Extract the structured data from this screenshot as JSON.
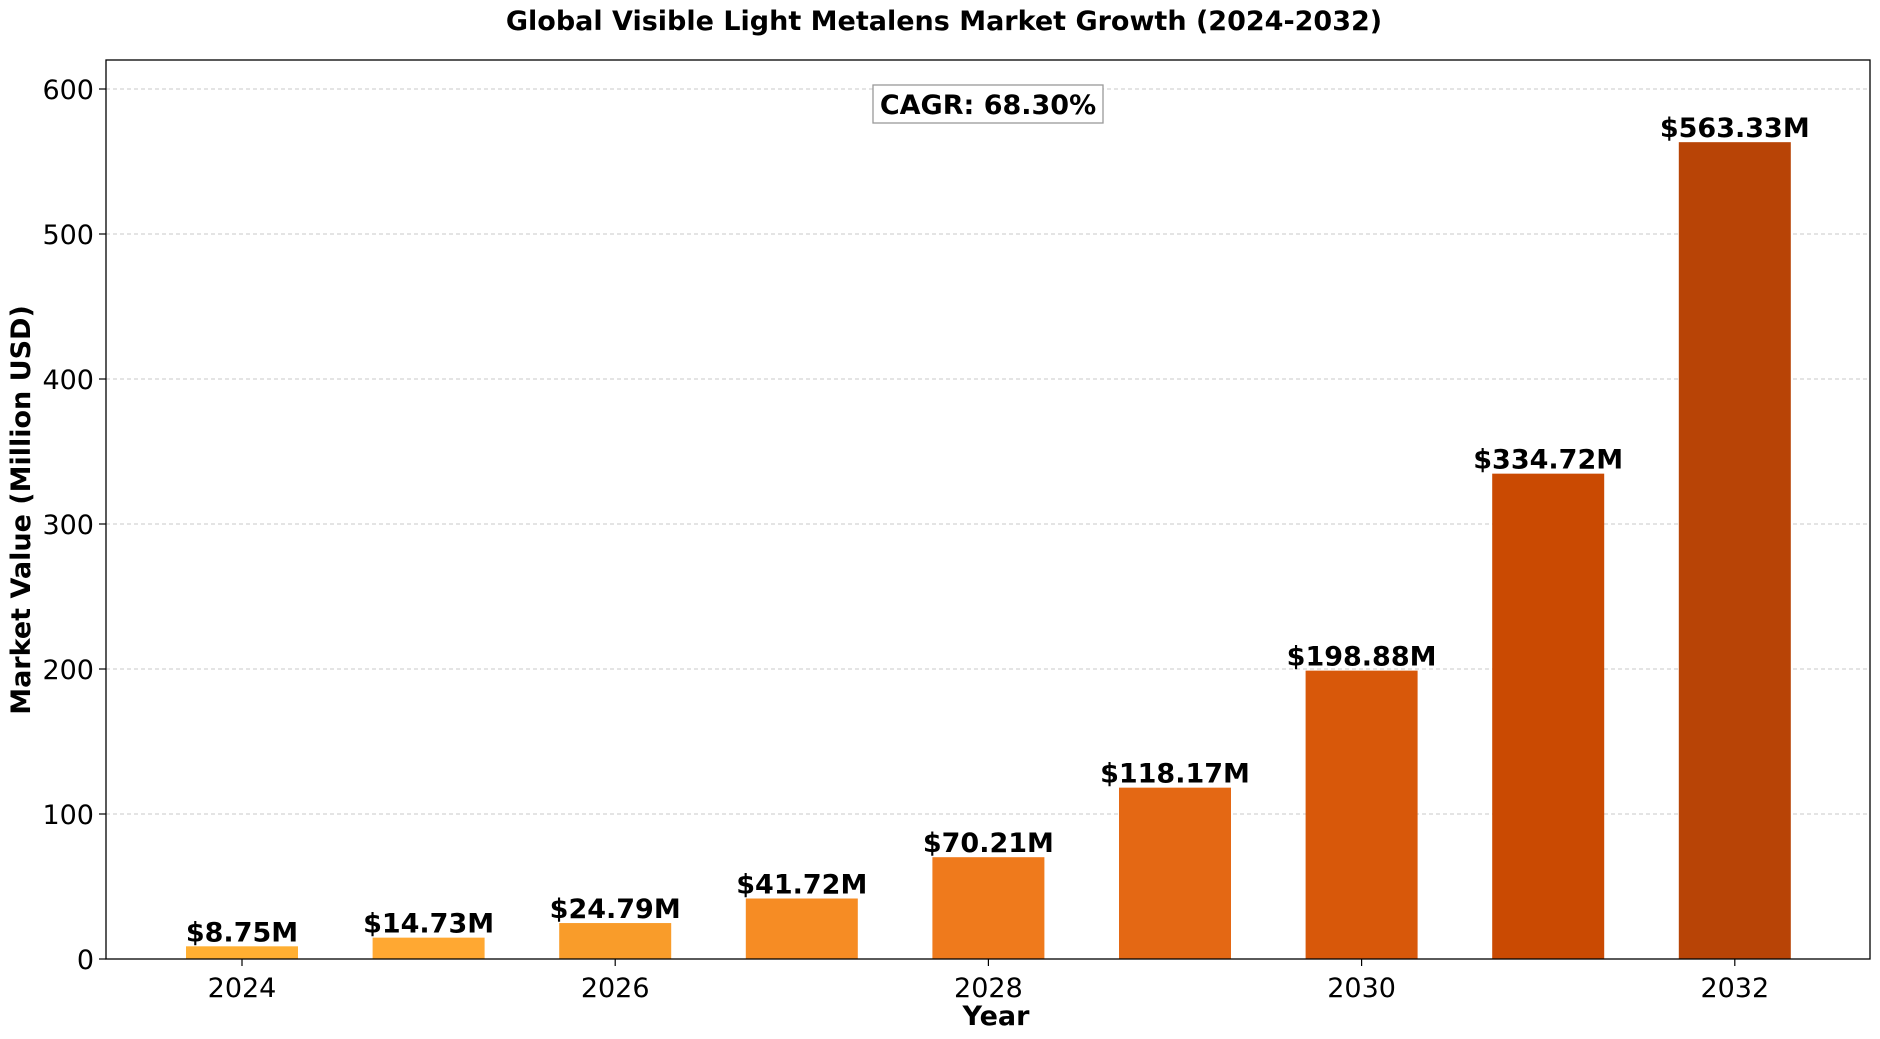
{
  "chart_data": {
    "type": "bar",
    "title": "Global Visible Light Metalens Market Growth (2024-2032)",
    "xlabel": "Year",
    "ylabel": "Market Value (Million USD)",
    "categories": [
      "2024",
      "2025",
      "2026",
      "2027",
      "2028",
      "2029",
      "2030",
      "2031",
      "2032"
    ],
    "x_tick_labels": [
      "2024",
      "2026",
      "2028",
      "2030",
      "2032"
    ],
    "values": [
      8.75,
      14.73,
      24.79,
      41.72,
      70.21,
      118.17,
      198.88,
      334.72,
      563.33
    ],
    "data_labels": [
      "$8.75M",
      "$14.73M",
      "$24.79M",
      "$41.72M",
      "$70.21M",
      "$118.17M",
      "$198.88M",
      "$334.72M",
      "$563.33M"
    ],
    "colors": [
      "#FFAF32",
      "#FFA832",
      "#F99C2A",
      "#F68C24",
      "#EF7A1C",
      "#E46814",
      "#D8580A",
      "#CA4A02",
      "#B84406"
    ],
    "ylim": [
      0,
      620
    ],
    "y_ticks": [
      0,
      100,
      200,
      300,
      400,
      500,
      600
    ],
    "grid": "y-dashed",
    "annotation": "CAGR: 68.30%"
  }
}
